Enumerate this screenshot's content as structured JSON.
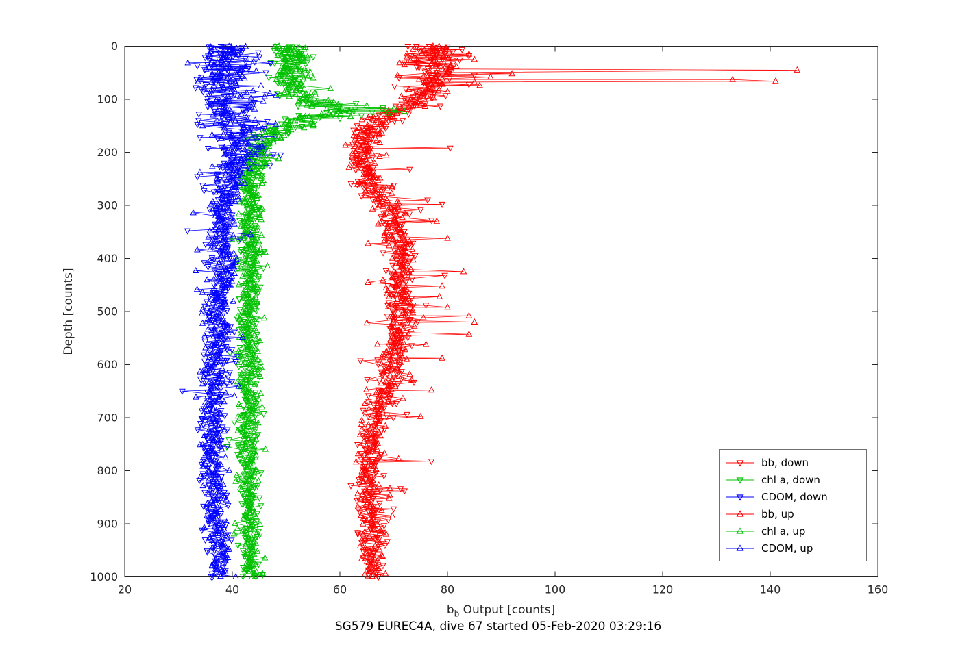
{
  "figure": {
    "xlabel_base": "b",
    "xlabel_sub": "b",
    "xlabel_rest": " Output [counts]",
    "ylabel": "Depth [counts]",
    "title": "SG579 EUREC4A, dive 67 started 05-Feb-2020 03:29:16"
  },
  "chart_data": {
    "type": "scatter",
    "subtype": "oceanographic-depth-profiles",
    "title": "SG579 EUREC4A, dive 67 started 05-Feb-2020 03:29:16",
    "xlabel": "b_b Output [counts]",
    "ylabel": "Depth [counts]",
    "xlim": [
      20,
      160
    ],
    "ylim": [
      0,
      1000
    ],
    "y_inverted": true,
    "xticks": [
      20,
      40,
      60,
      80,
      100,
      120,
      140,
      160
    ],
    "yticks": [
      0,
      100,
      200,
      300,
      400,
      500,
      600,
      700,
      800,
      900,
      1000
    ],
    "grid": false,
    "legend_position": "bottom-right",
    "axis_color": "#262626",
    "series": [
      {
        "name": "bb, down",
        "color": "#ff0000",
        "marker": "triangle-down",
        "seed": 11,
        "passes": 2,
        "points": 240,
        "spike_prob": 0.025,
        "spike_mag": 5,
        "anchors": [
          [
            0,
            78
          ],
          [
            40,
            78
          ],
          [
            80,
            77
          ],
          [
            100,
            75
          ],
          [
            115,
            72
          ],
          [
            130,
            69
          ],
          [
            145,
            66.5
          ],
          [
            170,
            65
          ],
          [
            210,
            64.5
          ],
          [
            250,
            65
          ],
          [
            280,
            66.5
          ],
          [
            300,
            69
          ],
          [
            340,
            70
          ],
          [
            380,
            70.5
          ],
          [
            420,
            71
          ],
          [
            460,
            70.5
          ],
          [
            500,
            71.5
          ],
          [
            540,
            71
          ],
          [
            580,
            70
          ],
          [
            620,
            69.5
          ],
          [
            660,
            68
          ],
          [
            700,
            66.5
          ],
          [
            740,
            66
          ],
          [
            800,
            65.5
          ],
          [
            850,
            65.5
          ],
          [
            900,
            66
          ],
          [
            950,
            66
          ],
          [
            1000,
            66.5
          ]
        ],
        "noise": [
          [
            0,
            2.2
          ],
          [
            100,
            2.2
          ],
          [
            150,
            1.6
          ],
          [
            300,
            1.5
          ],
          [
            1000,
            1.3
          ]
        ],
        "outliers": [
          [
            18,
            84
          ],
          [
            30,
            72
          ],
          [
            55,
            85
          ],
          [
            60,
            71
          ],
          [
            72,
            84
          ],
          [
            192,
            80.5
          ],
          [
            232,
            73
          ],
          [
            262,
            70
          ],
          [
            298,
            79
          ],
          [
            308,
            75
          ],
          [
            395,
            74
          ],
          [
            432,
            79.5
          ],
          [
            488,
            76
          ],
          [
            782,
            77
          ],
          [
            838,
            72
          ],
          [
            872,
            70
          ]
        ]
      },
      {
        "name": "chl a, down",
        "color": "#00c000",
        "marker": "triangle-down",
        "seed": 22,
        "passes": 2,
        "points": 240,
        "spike_prob": 0.02,
        "spike_mag": 3,
        "anchors": [
          [
            0,
            50.5
          ],
          [
            30,
            50.5
          ],
          [
            60,
            51
          ],
          [
            85,
            52
          ],
          [
            100,
            53.5
          ],
          [
            112,
            56
          ],
          [
            120,
            60
          ],
          [
            128,
            58
          ],
          [
            140,
            52
          ],
          [
            155,
            49
          ],
          [
            175,
            46.5
          ],
          [
            200,
            45
          ],
          [
            230,
            44
          ],
          [
            270,
            43.5
          ],
          [
            320,
            43.5
          ],
          [
            400,
            43.5
          ],
          [
            500,
            43
          ],
          [
            600,
            43.5
          ],
          [
            700,
            43
          ],
          [
            800,
            43
          ],
          [
            900,
            43
          ],
          [
            1000,
            43.5
          ]
        ],
        "noise": [
          [
            0,
            1.3
          ],
          [
            100,
            2.0
          ],
          [
            140,
            2.2
          ],
          [
            200,
            1.2
          ],
          [
            1000,
            0.9
          ]
        ],
        "outliers": [
          [
            20,
            55
          ],
          [
            45,
            54
          ],
          [
            108,
            63
          ],
          [
            116,
            68
          ],
          [
            121,
            71
          ],
          [
            124,
            66
          ],
          [
            131,
            64
          ],
          [
            136,
            60
          ]
        ]
      },
      {
        "name": "CDOM, down",
        "color": "#0000ff",
        "marker": "triangle-down",
        "seed": 33,
        "passes": 2,
        "points": 240,
        "spike_prob": 0.03,
        "spike_mag": 4,
        "anchors": [
          [
            0,
            38.5
          ],
          [
            40,
            39
          ],
          [
            80,
            39
          ],
          [
            120,
            39.5
          ],
          [
            160,
            40.5
          ],
          [
            200,
            41
          ],
          [
            240,
            40
          ],
          [
            270,
            39
          ],
          [
            300,
            38.5
          ],
          [
            350,
            38
          ],
          [
            400,
            38.5
          ],
          [
            450,
            37.5
          ],
          [
            500,
            37
          ],
          [
            550,
            37.5
          ],
          [
            600,
            37
          ],
          [
            650,
            36.5
          ],
          [
            700,
            36.5
          ],
          [
            760,
            36.5
          ],
          [
            820,
            37
          ],
          [
            880,
            36.5
          ],
          [
            940,
            37.5
          ],
          [
            1000,
            38
          ]
        ],
        "noise": [
          [
            0,
            2.8
          ],
          [
            150,
            2.8
          ],
          [
            220,
            2.0
          ],
          [
            280,
            1.4
          ],
          [
            1000,
            1.1
          ]
        ],
        "outliers": [
          [
            128,
            33.8
          ],
          [
            142,
            46.5
          ],
          [
            170,
            48
          ],
          [
            172,
            34
          ],
          [
            198,
            46
          ],
          [
            205,
            49
          ],
          [
            225,
            47
          ],
          [
            246,
            33.5
          ],
          [
            262,
            34.5
          ]
        ]
      },
      {
        "name": "bb, up",
        "color": "#ff0000",
        "marker": "triangle-up",
        "seed": 44,
        "passes": 2,
        "points": 240,
        "spike_prob": 0.025,
        "spike_mag": 5,
        "anchors": [
          [
            0,
            77.5
          ],
          [
            40,
            78
          ],
          [
            80,
            77
          ],
          [
            100,
            75.5
          ],
          [
            115,
            72
          ],
          [
            130,
            69
          ],
          [
            145,
            66.5
          ],
          [
            170,
            65
          ],
          [
            210,
            64.5
          ],
          [
            250,
            65.5
          ],
          [
            280,
            67
          ],
          [
            300,
            69.5
          ],
          [
            340,
            70
          ],
          [
            380,
            71
          ],
          [
            420,
            71
          ],
          [
            460,
            70.5
          ],
          [
            500,
            72
          ],
          [
            540,
            71
          ],
          [
            580,
            70
          ],
          [
            620,
            69.5
          ],
          [
            660,
            68
          ],
          [
            700,
            66.5
          ],
          [
            740,
            66
          ],
          [
            800,
            65.5
          ],
          [
            850,
            65.5
          ],
          [
            900,
            66
          ],
          [
            950,
            66
          ],
          [
            1000,
            66.5
          ]
        ],
        "noise": [
          [
            0,
            2.2
          ],
          [
            100,
            2.2
          ],
          [
            150,
            1.6
          ],
          [
            300,
            1.5
          ],
          [
            1000,
            1.3
          ]
        ],
        "outliers": [
          [
            15,
            84
          ],
          [
            25,
            85
          ],
          [
            35,
            72
          ],
          [
            45,
            145
          ],
          [
            52,
            92
          ],
          [
            58,
            88
          ],
          [
            63,
            133
          ],
          [
            66,
            141
          ],
          [
            68,
            85
          ],
          [
            74,
            86
          ],
          [
            330,
            78
          ],
          [
            362,
            80
          ],
          [
            425,
            83
          ],
          [
            452,
            79
          ],
          [
            472,
            78.5
          ],
          [
            492,
            80
          ],
          [
            508,
            84
          ],
          [
            520,
            85
          ],
          [
            543,
            84
          ],
          [
            562,
            76
          ],
          [
            588,
            79
          ],
          [
            648,
            77
          ],
          [
            698,
            75
          ]
        ]
      },
      {
        "name": "chl a, up",
        "color": "#00c000",
        "marker": "triangle-up",
        "seed": 55,
        "passes": 2,
        "points": 240,
        "spike_prob": 0.02,
        "spike_mag": 3,
        "anchors": [
          [
            0,
            50.5
          ],
          [
            30,
            51
          ],
          [
            60,
            51
          ],
          [
            85,
            52.5
          ],
          [
            100,
            54
          ],
          [
            112,
            56.5
          ],
          [
            120,
            60
          ],
          [
            128,
            58
          ],
          [
            140,
            52
          ],
          [
            155,
            49
          ],
          [
            175,
            46.5
          ],
          [
            200,
            45
          ],
          [
            230,
            44
          ],
          [
            270,
            43.5
          ],
          [
            320,
            43.5
          ],
          [
            400,
            43.5
          ],
          [
            500,
            43
          ],
          [
            600,
            43.5
          ],
          [
            700,
            43
          ],
          [
            800,
            43
          ],
          [
            900,
            43
          ],
          [
            1000,
            43.5
          ]
        ],
        "noise": [
          [
            0,
            1.3
          ],
          [
            100,
            2.0
          ],
          [
            140,
            2.2
          ],
          [
            200,
            1.2
          ],
          [
            1000,
            0.9
          ]
        ],
        "outliers": [
          [
            20,
            54
          ],
          [
            60,
            55
          ],
          [
            112,
            65
          ],
          [
            118,
            70
          ],
          [
            123,
            72
          ],
          [
            127,
            69
          ],
          [
            133,
            62
          ],
          [
            150,
            55
          ]
        ]
      },
      {
        "name": "CDOM, up",
        "color": "#0000ff",
        "marker": "triangle-up",
        "seed": 66,
        "passes": 2,
        "points": 240,
        "spike_prob": 0.03,
        "spike_mag": 4,
        "anchors": [
          [
            0,
            38.5
          ],
          [
            40,
            39
          ],
          [
            80,
            39.5
          ],
          [
            120,
            39.5
          ],
          [
            160,
            40.5
          ],
          [
            200,
            41
          ],
          [
            240,
            40
          ],
          [
            270,
            39
          ],
          [
            300,
            38.5
          ],
          [
            350,
            38
          ],
          [
            400,
            38.5
          ],
          [
            450,
            37.5
          ],
          [
            500,
            37
          ],
          [
            550,
            37.5
          ],
          [
            600,
            37
          ],
          [
            650,
            36.5
          ],
          [
            700,
            36.5
          ],
          [
            760,
            36.5
          ],
          [
            820,
            37
          ],
          [
            880,
            36.5
          ],
          [
            940,
            37.5
          ],
          [
            1000,
            38
          ]
        ],
        "noise": [
          [
            0,
            2.8
          ],
          [
            150,
            2.8
          ],
          [
            220,
            2.0
          ],
          [
            280,
            1.4
          ],
          [
            1000,
            1.1
          ]
        ],
        "outliers": [
          [
            60,
            34
          ],
          [
            95,
            46
          ],
          [
            150,
            34.5
          ],
          [
            188,
            45.5
          ],
          [
            238,
            34
          ]
        ]
      }
    ]
  }
}
